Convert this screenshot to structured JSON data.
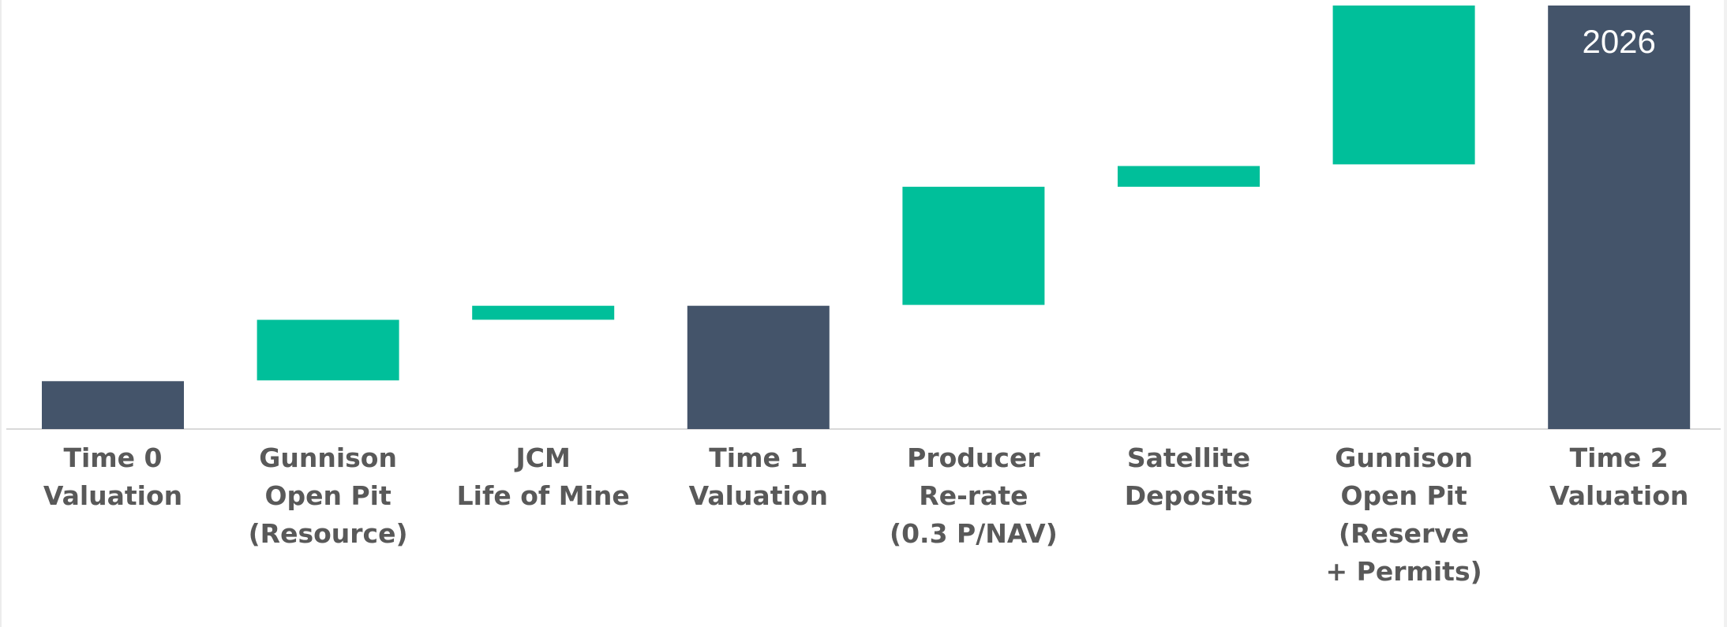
{
  "chart_data": {
    "type": "bar",
    "subtype": "waterfall",
    "title": "",
    "xlabel": "",
    "ylabel": "",
    "ylim": [
      0,
      100
    ],
    "grid": false,
    "categories": [
      [
        "Time 0",
        "Valuation"
      ],
      [
        "Gunnison",
        "Open Pit",
        "(Resource)"
      ],
      [
        "JCM",
        "Life of Mine"
      ],
      [
        "Time 1",
        "Valuation"
      ],
      [
        "Producer",
        "Re-rate",
        "(0.3 P/NAV)"
      ],
      [
        "Satellite",
        "Deposits"
      ],
      [
        "Gunnison",
        "Open Pit",
        "(Reserve",
        "+ Permits)"
      ],
      [
        "Time 2",
        "Valuation"
      ]
    ],
    "bars": [
      {
        "kind": "total",
        "base": 0,
        "value": 11.3
      },
      {
        "kind": "increase",
        "base": 11.5,
        "value": 14.3
      },
      {
        "kind": "increase",
        "base": 25.8,
        "value": 3.3
      },
      {
        "kind": "total",
        "base": 0,
        "value": 29.1
      },
      {
        "kind": "increase",
        "base": 29.3,
        "value": 27.9
      },
      {
        "kind": "increase",
        "base": 57.2,
        "value": 4.9
      },
      {
        "kind": "increase",
        "base": 62.5,
        "value": 37.5
      },
      {
        "kind": "total",
        "base": 0,
        "value": 100
      }
    ],
    "annotations": [
      {
        "bar_index": 7,
        "text": "2026"
      }
    ],
    "colors": {
      "total": "#44546A",
      "increase": "#00BF9A",
      "axis": "#D9D9D9",
      "label": "#595959"
    }
  }
}
